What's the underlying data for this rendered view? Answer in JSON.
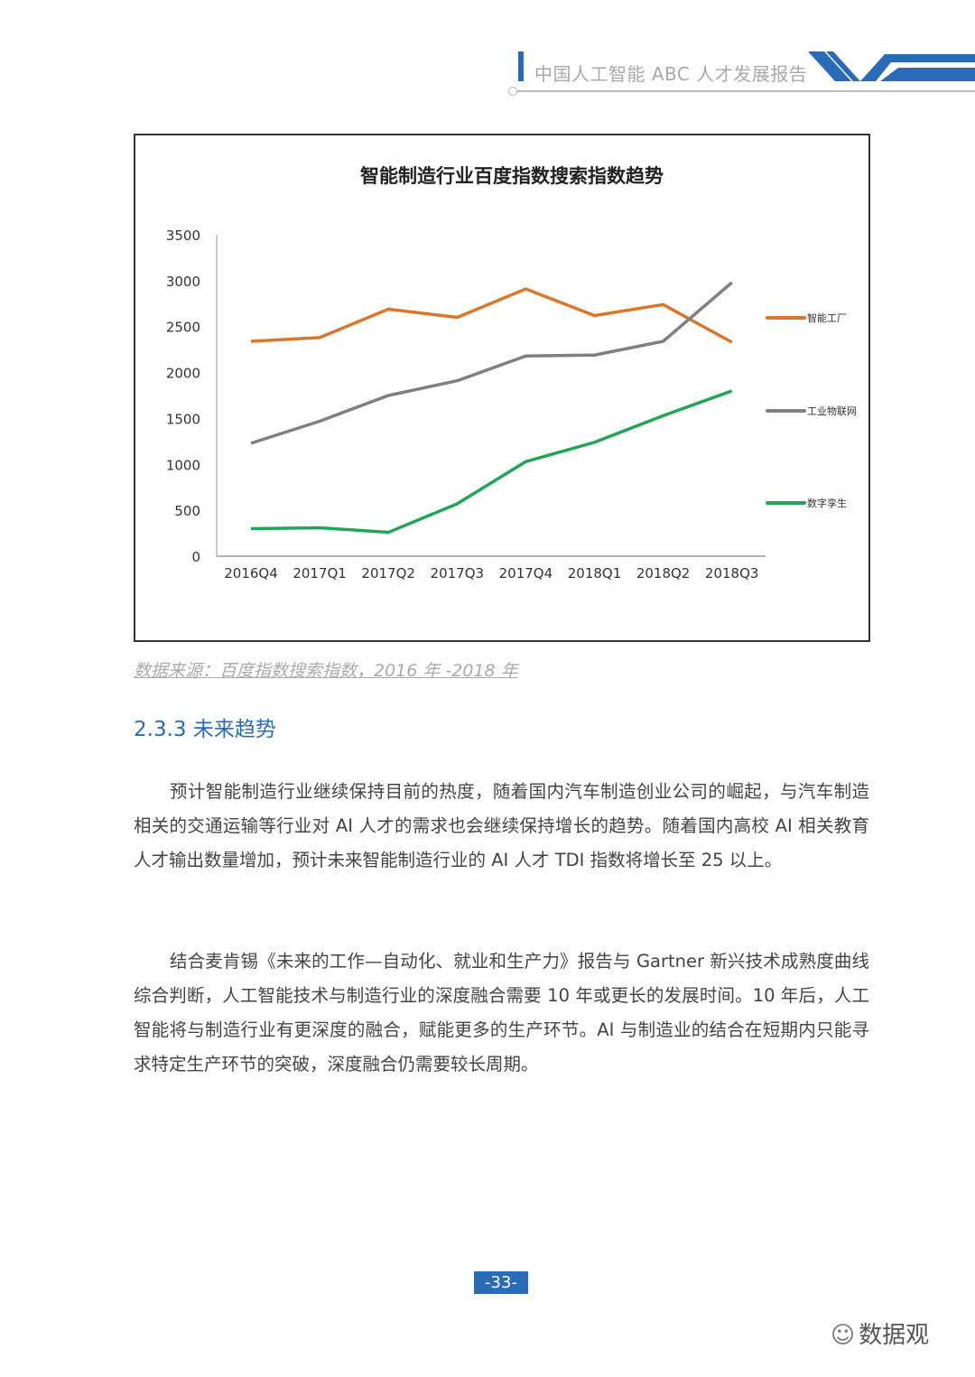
{
  "header": {
    "title": "中国人工智能 ABC 人才发展报告",
    "accent": "#2a6bb8"
  },
  "chart_data": {
    "type": "line",
    "title": "智能制造行业百度指数搜索指数趋势",
    "categories": [
      "2016Q4",
      "2017Q1",
      "2017Q2",
      "2017Q3",
      "2017Q4",
      "2018Q1",
      "2018Q2",
      "2018Q3"
    ],
    "ylim": [
      0,
      3500
    ],
    "yticks": [
      0,
      500,
      1000,
      1500,
      2000,
      2500,
      3000,
      3500
    ],
    "legend_position": "right",
    "grid": false,
    "series": [
      {
        "name": "智能工厂",
        "color": "#d9782a",
        "values": [
          2340,
          2380,
          2690,
          2600,
          2910,
          2620,
          2740,
          2330
        ]
      },
      {
        "name": "工业物联网",
        "color": "#808080",
        "values": [
          1230,
          1470,
          1750,
          1910,
          2180,
          2190,
          2340,
          2980
        ]
      },
      {
        "name": "数字孪生",
        "color": "#22a55a",
        "values": [
          300,
          310,
          260,
          570,
          1030,
          1240,
          1530,
          1800
        ]
      }
    ]
  },
  "source": "数据来源：百度指数搜索指数，2016 年 -2018 年",
  "section": {
    "title": "2.3.3 未来趋势"
  },
  "paragraphs": [
    "预计智能制造行业继续保持目前的热度，随着国内汽车制造创业公司的崛起，与汽车制造相关的交通运输等行业对 AI 人才的需求也会继续保持增长的趋势。随着国内高校 AI 相关教育人才输出数量增加，预计未来智能制造行业的 AI 人才 TDI 指数将增长至 25 以上。",
    "结合麦肯锡《未来的工作—自动化、就业和生产力》报告与 Gartner 新兴技术成熟度曲线综合判断，人工智能技术与制造行业的深度融合需要 10 年或更长的发展时间。10 年后，人工智能将与制造行业有更深度的融合，赋能更多的生产环节。AI 与制造业的结合在短期内只能寻求特定生产环节的突破，深度融合仍需要较长周期。"
  ],
  "page_number": "-33-",
  "watermark": {
    "text": "数据观",
    "icon": "wechat-icon"
  }
}
